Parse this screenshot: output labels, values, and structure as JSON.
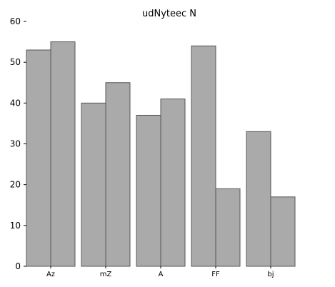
{
  "chart_data": {
    "type": "bar",
    "title": "udNyteec N",
    "xlabel": "",
    "ylabel": "",
    "categories": [
      "Az",
      "mZ",
      "A",
      "FF",
      "bj"
    ],
    "series": [
      {
        "values": [
          53,
          40,
          37,
          54,
          33
        ]
      },
      {
        "values": [
          55,
          45,
          41,
          19,
          17
        ]
      }
    ],
    "ylim": [
      0,
      60
    ],
    "yticks": [
      0,
      10,
      20,
      30,
      40,
      50,
      60
    ],
    "grid": false,
    "legend": "none",
    "bar_color": "#aaaaaa",
    "bar_edge_color": "#555555"
  }
}
